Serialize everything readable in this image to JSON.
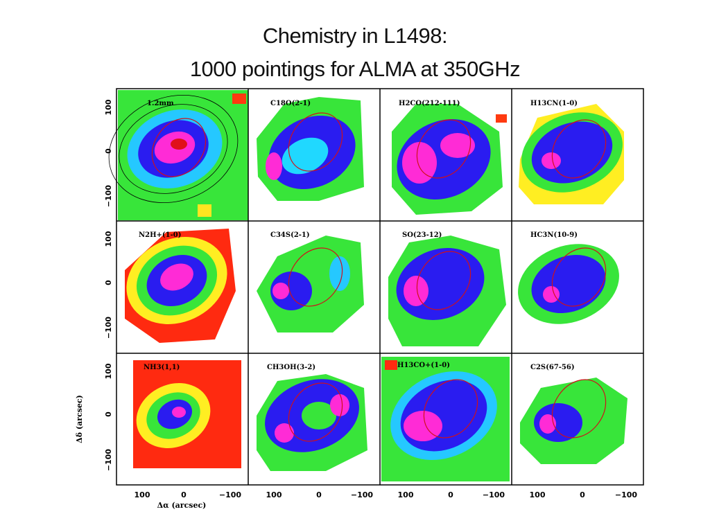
{
  "title_line1": "Chemistry in L1498:",
  "title_line2": "1000 pointings for ALMA at 350GHz",
  "panels": [
    {
      "id": "1p2mm",
      "label": "1.2mm"
    },
    {
      "id": "c18o",
      "label": "C18O(2-1)"
    },
    {
      "id": "h2co",
      "label": "H2CO(212-111)"
    },
    {
      "id": "h13cn",
      "label": "H13CN(1-0)"
    },
    {
      "id": "n2h",
      "label": "N2H+(1-0)"
    },
    {
      "id": "c34s",
      "label": "C34S(2-1)"
    },
    {
      "id": "so",
      "label": "SO(23-12)"
    },
    {
      "id": "hc3n",
      "label": "HC3N(10-9)"
    },
    {
      "id": "nh3",
      "label": "NH3(1,1)"
    },
    {
      "id": "ch3oh",
      "label": "CH3OH(3-2)"
    },
    {
      "id": "h13co",
      "label": "H13CO+(1-0)"
    },
    {
      "id": "c2s",
      "label": "C2S(67-56)"
    }
  ],
  "axes": {
    "y_ticks": [
      "100",
      "0",
      "−100"
    ],
    "x_ticks": [
      "100",
      "0",
      "−100"
    ],
    "y_label": "Δδ (arcsec)",
    "x_label": "Δα (arcsec)"
  }
}
